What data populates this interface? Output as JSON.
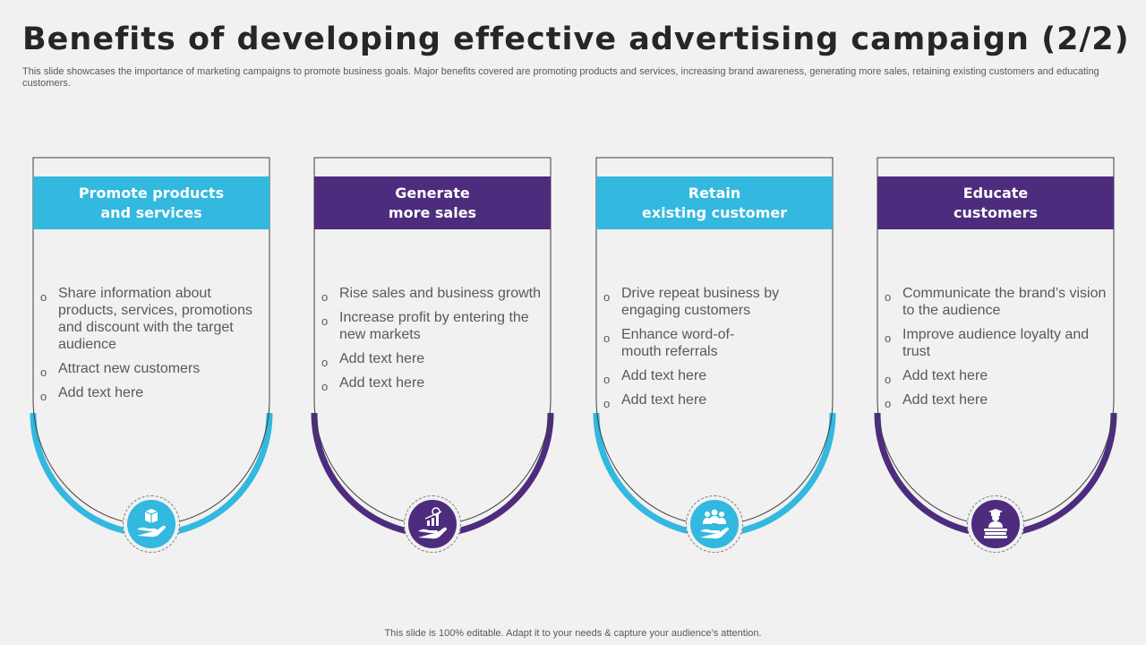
{
  "header": {
    "title": "Benefits of developing effective advertising campaign (2/2)",
    "subtitle": "This slide showcases the importance of marketing campaigns to promote business goals. Major benefits covered are promoting products and services, increasing brand awareness, generating more sales, retaining existing customers and educating customers."
  },
  "colors": {
    "cyan": "#33b8df",
    "purple": "#4d2c7e"
  },
  "cards": [
    {
      "title": "Promote products\nand services",
      "icon": "box-in-hand-icon",
      "bullets": [
        "Share information about products, services, promotions and discount with the target audience",
        "Attract new customers",
        "Add text here"
      ]
    },
    {
      "title": "Generate\nmore sales",
      "icon": "growth-chart-in-hand-icon",
      "bullets": [
        "Rise sales and business growth",
        "Increase profit by entering the new markets",
        "Add text here",
        "Add text here"
      ]
    },
    {
      "title": "Retain\nexisting customer",
      "icon": "people-in-hand-icon",
      "bullets": [
        "Drive repeat business by engaging customers",
        "Enhance word-of-mouth referrals",
        "Add text here",
        "Add text here"
      ]
    },
    {
      "title": "Educate\ncustomers",
      "icon": "graduate-on-books-icon",
      "bullets": [
        "Communicate the brand’s vision to the audience",
        "Improve audience loyalty and trust",
        "Add text here",
        "Add text here"
      ]
    }
  ],
  "footer": {
    "text": "This slide is 100% editable. Adapt it to your needs & capture your audience’s attention."
  }
}
